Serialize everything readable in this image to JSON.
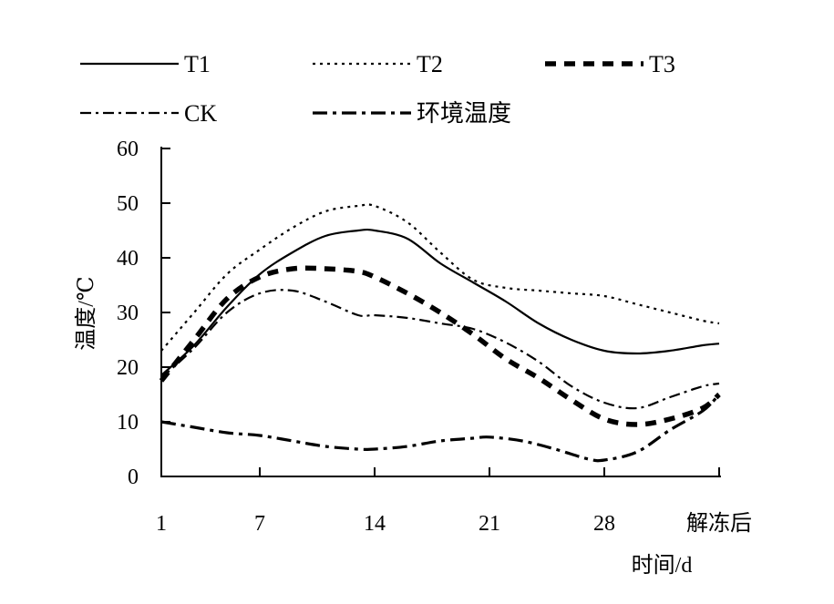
{
  "chart_data": {
    "type": "line",
    "title": "",
    "ylabel": "温度/℃",
    "xlabel": "时间/d",
    "ylim": [
      0,
      60
    ],
    "yticks": [
      0,
      10,
      20,
      30,
      40,
      50,
      60
    ],
    "x_range": [
      1,
      35
    ],
    "xticks": [
      {
        "value": 1,
        "label": "1"
      },
      {
        "value": 7,
        "label": "7"
      },
      {
        "value": 14,
        "label": "14"
      },
      {
        "value": 21,
        "label": "21"
      },
      {
        "value": 28,
        "label": "28"
      },
      {
        "value": 35,
        "label": "解冻后"
      }
    ],
    "legend_position": "top",
    "series": [
      {
        "name": "T1",
        "style": "solid",
        "color": "#000000",
        "x": [
          1,
          3,
          5,
          7,
          9,
          11,
          13,
          14,
          16,
          18,
          20,
          22,
          24,
          26,
          28,
          30,
          32,
          34,
          35
        ],
        "y": [
          18.5,
          24,
          31,
          37,
          41,
          44,
          45,
          45,
          43.5,
          39,
          35.5,
          32,
          28,
          25,
          23,
          22.5,
          23,
          24,
          24.3
        ]
      },
      {
        "name": "T2",
        "style": "dotted",
        "color": "#000000",
        "x": [
          1,
          3,
          5,
          7,
          9,
          11,
          13,
          14,
          16,
          18,
          20,
          22,
          24,
          26,
          28,
          30,
          32,
          34,
          35
        ],
        "y": [
          23,
          30,
          37,
          41.5,
          45.5,
          48.5,
          49.5,
          49.5,
          46.5,
          41,
          36,
          34.5,
          34,
          33.5,
          33,
          31.5,
          30,
          28.5,
          28
        ]
      },
      {
        "name": "T3",
        "style": "dashed",
        "color": "#000000",
        "x": [
          1,
          3,
          5,
          7,
          9,
          11,
          13,
          14,
          16,
          18,
          20,
          22,
          24,
          26,
          28,
          30,
          32,
          34,
          35
        ],
        "y": [
          17.5,
          25,
          32.5,
          36.5,
          38,
          38,
          37.5,
          36.5,
          33.5,
          30,
          26,
          21.5,
          18,
          14,
          10.5,
          9.5,
          10.5,
          12.5,
          15
        ]
      },
      {
        "name": "CK",
        "style": "dashdot",
        "color": "#000000",
        "x": [
          1,
          3,
          5,
          7,
          9,
          11,
          13,
          14,
          16,
          18,
          20,
          22,
          24,
          26,
          28,
          30,
          32,
          34,
          35
        ],
        "y": [
          18,
          23.5,
          30,
          33.5,
          34,
          32,
          29.5,
          29.5,
          29,
          28,
          27,
          24.5,
          21,
          16.5,
          13.5,
          12.5,
          14.5,
          16.5,
          17
        ]
      },
      {
        "name": "环境温度",
        "style": "longdashdot",
        "color": "#000000",
        "x": [
          1,
          3,
          5,
          7,
          9,
          11,
          13,
          14,
          16,
          18,
          20,
          21,
          23,
          25,
          27,
          28,
          30,
          32,
          34,
          35
        ],
        "y": [
          10,
          9,
          8,
          7.5,
          6.5,
          5.5,
          5,
          5,
          5.5,
          6.5,
          7,
          7.2,
          6.5,
          5,
          3.2,
          3,
          4.5,
          8.5,
          12,
          15
        ]
      }
    ]
  }
}
